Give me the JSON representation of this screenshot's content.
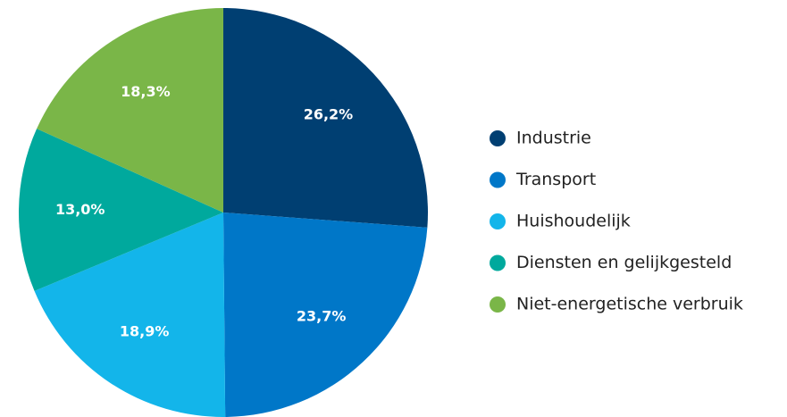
{
  "chart_data": {
    "type": "pie",
    "categories": [
      "Industrie",
      "Transport",
      "Huishoudelijk",
      "Diensten en gelijkgesteld",
      "Niet-energetische verbruik"
    ],
    "values": [
      26.2,
      23.7,
      18.9,
      13.0,
      18.3
    ],
    "value_labels": [
      "26,2%",
      "23,7%",
      "18,9%",
      "13,0%",
      "18,3%"
    ],
    "colors": [
      "#003f72",
      "#0077c8",
      "#13b5ea",
      "#00a99d",
      "#7ab648"
    ],
    "legend": "right"
  }
}
